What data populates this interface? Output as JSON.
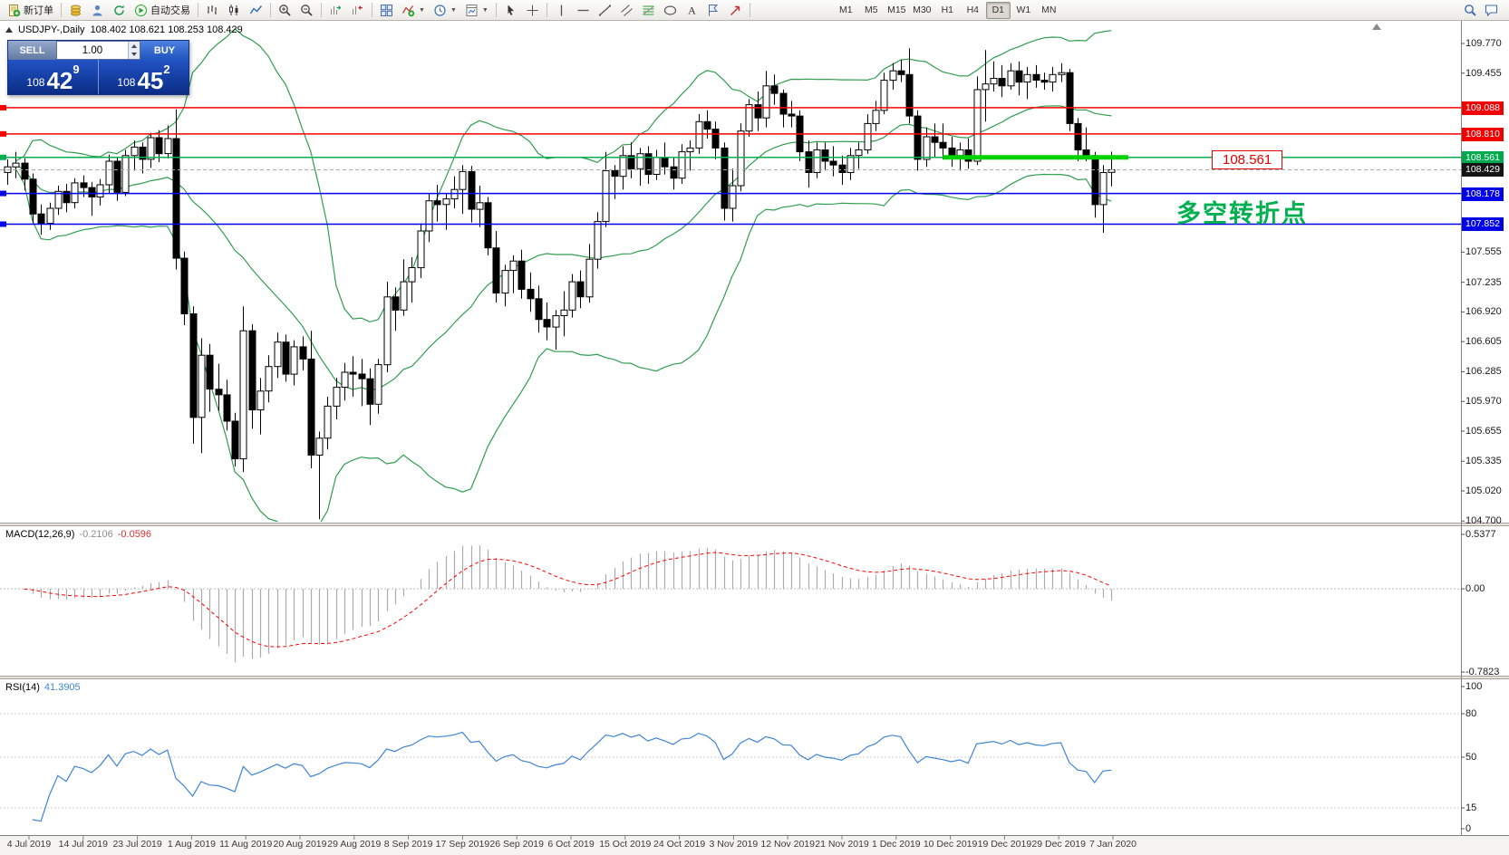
{
  "toolbar": {
    "buttons": [
      {
        "name": "new-order",
        "icon": "new-order",
        "label": "新订单"
      },
      {
        "sep": true
      },
      {
        "name": "market-watch",
        "icon": "coins"
      },
      {
        "name": "data-window",
        "icon": "person"
      },
      {
        "name": "navigator",
        "icon": "refresh"
      },
      {
        "name": "auto-trading",
        "icon": "play",
        "label": "自动交易"
      },
      {
        "sep": true
      },
      {
        "name": "chart-bars",
        "icon": "bars"
      },
      {
        "name": "chart-candles",
        "icon": "candles"
      },
      {
        "name": "chart-line",
        "icon": "linechart"
      },
      {
        "sep": true
      },
      {
        "name": "zoom-in",
        "icon": "zoomin"
      },
      {
        "name": "zoom-out",
        "icon": "zoomout"
      },
      {
        "sep": true
      },
      {
        "name": "auto-scroll",
        "icon": "autoscroll"
      },
      {
        "name": "chart-shift",
        "icon": "shift"
      },
      {
        "sep": true
      },
      {
        "name": "tile-windows",
        "icon": "tile"
      },
      {
        "name": "indicators",
        "icon": "indicator",
        "dropdown": true
      },
      {
        "name": "periods",
        "icon": "clock",
        "dropdown": true
      },
      {
        "name": "templates",
        "icon": "template",
        "dropdown": true
      },
      {
        "sep": true
      },
      {
        "name": "cursor",
        "icon": "cursor"
      },
      {
        "name": "crosshair",
        "icon": "cross"
      },
      {
        "sep": true
      },
      {
        "name": "vertical-line",
        "icon": "vline"
      },
      {
        "name": "horizontal-line",
        "icon": "hline"
      },
      {
        "name": "trendline",
        "icon": "tline"
      },
      {
        "name": "equidistant-channel",
        "icon": "channel"
      },
      {
        "name": "fibonacci",
        "icon": "fibo"
      },
      {
        "name": "shapes",
        "icon": "shapes"
      },
      {
        "name": "text",
        "icon": "textA"
      },
      {
        "name": "text-label",
        "icon": "label"
      },
      {
        "name": "arrows",
        "icon": "arrow"
      },
      {
        "sep": true
      }
    ],
    "timeframes": [
      "M1",
      "M5",
      "M15",
      "M30",
      "H1",
      "H4",
      "D1",
      "W1",
      "MN"
    ],
    "active_timeframe": "D1",
    "right_buttons": [
      {
        "name": "search",
        "icon": "search"
      },
      {
        "name": "chat",
        "icon": "chat"
      }
    ]
  },
  "chart": {
    "title": {
      "symbol": "USDJPY-,Daily",
      "ohlc": "108.402 108.621 108.253 108.429"
    },
    "trade_panel": {
      "sell_label": "SELL",
      "buy_label": "BUY",
      "volume": "1.00",
      "sell_price_big": "108",
      "sell_price_main": "42",
      "sell_price_sup": "9",
      "buy_price_big": "108",
      "buy_price_main": "45",
      "buy_price_sup": "2"
    },
    "annotations": {
      "price_label": "108.561",
      "note": "多空转折点"
    },
    "price_axis": {
      "ticks": [
        "109.770",
        "109.455",
        "107.555",
        "107.235",
        "106.920",
        "106.605",
        "106.285",
        "105.970",
        "105.655",
        "105.335",
        "105.020",
        "104.700"
      ],
      "tags": [
        {
          "text": "109.088",
          "bg": "#f00000"
        },
        {
          "text": "108.810",
          "bg": "#f00000"
        },
        {
          "text": "108.561",
          "bg": "#00a84e"
        },
        {
          "text": "108.429",
          "bg": "#151515"
        },
        {
          "text": "108.178",
          "bg": "#0000e8"
        },
        {
          "text": "107.852",
          "bg": "#0000e8"
        }
      ]
    },
    "time_axis": {
      "labels": [
        "4 Jul 2019",
        "14 Jul 2019",
        "23 Jul 2019",
        "1 Aug 2019",
        "11 Aug 2019",
        "20 Aug 2019",
        "29 Aug 2019",
        "8 Sep 2019",
        "17 Sep 2019",
        "26 Sep 2019",
        "6 Oct 2019",
        "15 Oct 2019",
        "24 Oct 2019",
        "3 Nov 2019",
        "12 Nov 2019",
        "21 Nov 2019",
        "1 Dec 2019",
        "10 Dec 2019",
        "19 Dec 2019",
        "29 Dec 2019",
        "7 Jan 2020"
      ]
    }
  },
  "panels": {
    "macd": {
      "label": "MACD(12,26,9)",
      "value_main": "-0.2106",
      "value_signal": "-0.0596",
      "axis": [
        "0.5377",
        "0.00",
        "-0.7823"
      ]
    },
    "rsi": {
      "label": "RSI(14)",
      "value": "41.3905",
      "axis": [
        "100",
        "80",
        "50",
        "15",
        "0"
      ],
      "levels": [
        80,
        50,
        15
      ]
    }
  },
  "chart_data": {
    "type": "candlestick",
    "symbol": "USDJPY",
    "timeframe": "Daily",
    "ylim": [
      104.7,
      109.77
    ],
    "ohlc": [
      [
        108.4,
        108.54,
        108.27,
        108.46
      ],
      [
        108.46,
        108.62,
        108.34,
        108.5
      ],
      [
        108.5,
        108.55,
        108.21,
        108.33
      ],
      [
        108.33,
        108.39,
        107.86,
        107.96
      ],
      [
        107.96,
        108.06,
        107.74,
        107.86
      ],
      [
        107.86,
        108.08,
        107.79,
        108.02
      ],
      [
        108.02,
        108.26,
        107.95,
        108.2
      ],
      [
        108.2,
        108.28,
        107.98,
        108.08
      ],
      [
        108.08,
        108.34,
        108.02,
        108.29
      ],
      [
        108.29,
        108.37,
        108.14,
        108.24
      ],
      [
        108.24,
        108.3,
        107.94,
        108.14
      ],
      [
        108.14,
        108.33,
        108.05,
        108.27
      ],
      [
        108.27,
        108.59,
        108.18,
        108.52
      ],
      [
        108.52,
        108.56,
        108.1,
        108.19
      ],
      [
        108.19,
        108.64,
        108.15,
        108.58
      ],
      [
        108.58,
        108.74,
        108.42,
        108.67
      ],
      [
        108.67,
        108.72,
        108.39,
        108.54
      ],
      [
        108.54,
        108.82,
        108.45,
        108.77
      ],
      [
        108.77,
        108.85,
        108.51,
        108.6
      ],
      [
        108.6,
        108.9,
        108.55,
        108.76
      ],
      [
        108.76,
        109.07,
        107.37,
        107.49
      ],
      [
        107.49,
        107.56,
        106.78,
        106.9
      ],
      [
        106.9,
        106.98,
        105.52,
        105.8
      ],
      [
        105.8,
        106.64,
        105.42,
        106.46
      ],
      [
        106.46,
        106.58,
        105.86,
        106.1
      ],
      [
        106.1,
        106.37,
        105.87,
        106.04
      ],
      [
        106.04,
        106.2,
        105.66,
        105.76
      ],
      [
        105.76,
        105.85,
        105.28,
        105.36
      ],
      [
        105.36,
        106.98,
        105.22,
        106.72
      ],
      [
        106.72,
        106.79,
        105.68,
        105.88
      ],
      [
        105.88,
        106.22,
        105.62,
        106.08
      ],
      [
        106.08,
        106.46,
        105.96,
        106.34
      ],
      [
        106.34,
        106.7,
        106.22,
        106.6
      ],
      [
        106.6,
        106.68,
        106.18,
        106.26
      ],
      [
        106.26,
        106.62,
        106.14,
        106.55
      ],
      [
        106.55,
        106.66,
        106.3,
        106.42
      ],
      [
        106.42,
        106.72,
        105.26,
        105.4
      ],
      [
        105.4,
        105.65,
        104.72,
        105.58
      ],
      [
        105.58,
        106.02,
        105.46,
        105.92
      ],
      [
        105.92,
        106.22,
        105.78,
        106.12
      ],
      [
        106.12,
        106.38,
        105.98,
        106.28
      ],
      [
        106.28,
        106.45,
        106.02,
        106.26
      ],
      [
        106.26,
        106.42,
        105.92,
        106.21
      ],
      [
        106.21,
        106.32,
        105.72,
        105.94
      ],
      [
        105.94,
        106.42,
        105.84,
        106.36
      ],
      [
        106.36,
        107.24,
        106.28,
        107.08
      ],
      [
        107.08,
        107.18,
        106.72,
        106.94
      ],
      [
        106.94,
        107.48,
        106.88,
        107.24
      ],
      [
        107.24,
        107.5,
        107.02,
        107.39
      ],
      [
        107.39,
        107.86,
        107.28,
        107.78
      ],
      [
        107.78,
        108.18,
        107.66,
        108.1
      ],
      [
        108.1,
        108.27,
        107.88,
        108.06
      ],
      [
        108.06,
        108.18,
        107.79,
        108.12
      ],
      [
        108.12,
        108.36,
        108.02,
        108.22
      ],
      [
        108.22,
        108.48,
        107.96,
        108.41
      ],
      [
        108.41,
        108.47,
        107.87,
        108.01
      ],
      [
        108.01,
        108.26,
        107.82,
        108.08
      ],
      [
        108.08,
        108.14,
        107.52,
        107.6
      ],
      [
        107.6,
        107.78,
        107.02,
        107.12
      ],
      [
        107.12,
        107.42,
        106.98,
        107.36
      ],
      [
        107.36,
        107.52,
        107.12,
        107.46
      ],
      [
        107.46,
        107.58,
        107.06,
        107.16
      ],
      [
        107.16,
        107.34,
        106.92,
        107.06
      ],
      [
        107.06,
        107.2,
        106.7,
        106.84
      ],
      [
        106.84,
        107.02,
        106.62,
        106.76
      ],
      [
        106.76,
        106.94,
        106.52,
        106.88
      ],
      [
        106.88,
        107.14,
        106.66,
        106.94
      ],
      [
        106.94,
        107.32,
        106.86,
        107.24
      ],
      [
        107.24,
        107.36,
        106.96,
        107.08
      ],
      [
        107.08,
        107.64,
        107.02,
        107.48
      ],
      [
        107.48,
        107.98,
        107.38,
        107.88
      ],
      [
        107.88,
        108.62,
        107.82,
        108.42
      ],
      [
        108.42,
        108.48,
        108.12,
        108.36
      ],
      [
        108.36,
        108.68,
        108.22,
        108.58
      ],
      [
        108.58,
        108.72,
        108.34,
        108.44
      ],
      [
        108.44,
        108.66,
        108.26,
        108.6
      ],
      [
        108.6,
        108.68,
        108.28,
        108.38
      ],
      [
        108.38,
        108.64,
        108.32,
        108.56
      ],
      [
        108.56,
        108.72,
        108.38,
        108.46
      ],
      [
        108.46,
        108.56,
        108.22,
        108.34
      ],
      [
        108.34,
        108.7,
        108.28,
        108.62
      ],
      [
        108.62,
        108.74,
        108.42,
        108.66
      ],
      [
        108.66,
        109.02,
        108.6,
        108.94
      ],
      [
        108.94,
        109.06,
        108.76,
        108.86
      ],
      [
        108.86,
        108.94,
        108.54,
        108.66
      ],
      [
        108.66,
        108.72,
        107.89,
        108.02
      ],
      [
        108.02,
        108.44,
        107.88,
        108.26
      ],
      [
        108.26,
        108.92,
        108.2,
        108.84
      ],
      [
        108.84,
        109.18,
        108.78,
        109.12
      ],
      [
        109.12,
        109.26,
        108.84,
        108.98
      ],
      [
        108.98,
        109.48,
        108.88,
        109.32
      ],
      [
        109.32,
        109.44,
        109.12,
        109.24
      ],
      [
        109.24,
        109.28,
        108.88,
        109.02
      ],
      [
        109.02,
        109.16,
        108.88,
        109.0
      ],
      [
        109.0,
        109.06,
        108.52,
        108.62
      ],
      [
        108.62,
        108.74,
        108.24,
        108.4
      ],
      [
        108.4,
        108.72,
        108.34,
        108.64
      ],
      [
        108.64,
        108.72,
        108.42,
        108.52
      ],
      [
        108.52,
        108.68,
        108.36,
        108.48
      ],
      [
        108.48,
        108.58,
        108.27,
        108.4
      ],
      [
        108.4,
        108.66,
        108.32,
        108.58
      ],
      [
        108.58,
        108.72,
        108.44,
        108.64
      ],
      [
        108.64,
        109.02,
        108.6,
        108.92
      ],
      [
        108.92,
        109.16,
        108.84,
        109.06
      ],
      [
        109.06,
        109.46,
        109.02,
        109.38
      ],
      [
        109.38,
        109.56,
        109.28,
        109.48
      ],
      [
        109.48,
        109.6,
        109.36,
        109.44
      ],
      [
        109.44,
        109.72,
        108.92,
        109.0
      ],
      [
        109.0,
        109.06,
        108.42,
        108.54
      ],
      [
        108.54,
        108.88,
        108.46,
        108.78
      ],
      [
        108.78,
        108.92,
        108.56,
        108.72
      ],
      [
        108.72,
        108.92,
        108.54,
        108.66
      ],
      [
        108.66,
        108.78,
        108.46,
        108.58
      ],
      [
        108.58,
        108.72,
        108.42,
        108.64
      ],
      [
        108.64,
        108.76,
        108.44,
        108.52
      ],
      [
        108.52,
        109.42,
        108.48,
        109.28
      ],
      [
        109.28,
        109.7,
        108.94,
        109.34
      ],
      [
        109.34,
        109.58,
        109.26,
        109.4
      ],
      [
        109.4,
        109.54,
        109.2,
        109.32
      ],
      [
        109.32,
        109.56,
        109.28,
        109.48
      ],
      [
        109.48,
        109.58,
        109.22,
        109.36
      ],
      [
        109.36,
        109.52,
        109.18,
        109.44
      ],
      [
        109.44,
        109.54,
        109.3,
        109.38
      ],
      [
        109.38,
        109.46,
        109.28,
        109.36
      ],
      [
        109.36,
        109.52,
        109.26,
        109.44
      ],
      [
        109.44,
        109.56,
        109.36,
        109.46
      ],
      [
        109.46,
        109.5,
        108.84,
        108.92
      ],
      [
        108.92,
        108.98,
        108.52,
        108.64
      ],
      [
        108.64,
        108.88,
        108.52,
        108.58
      ],
      [
        108.58,
        108.62,
        107.92,
        108.06
      ],
      [
        108.06,
        108.48,
        107.76,
        108.4
      ],
      [
        108.402,
        108.621,
        108.253,
        108.429
      ]
    ],
    "indicators": [
      {
        "type": "bollinger_bands",
        "period": 20,
        "deviation": 2,
        "color": "#2f9e4f"
      },
      {
        "type": "macd",
        "fast": 12,
        "slow": 26,
        "signal": 9,
        "current_main": -0.2106,
        "current_signal": -0.0596,
        "yrange": [
          -0.7823,
          0.5377
        ],
        "histogram_color": "#ababab",
        "signal_color": "#ff0000"
      },
      {
        "type": "rsi",
        "period": 14,
        "current": 41.3905,
        "yrange": [
          0,
          100
        ],
        "color": "#3f84d6"
      }
    ],
    "hlines": [
      {
        "price": 109.088,
        "color": "#ff0000"
      },
      {
        "price": 108.81,
        "color": "#ff0000"
      },
      {
        "price": 108.561,
        "color": "#00b050"
      },
      {
        "price": 108.178,
        "color": "#0000ee"
      },
      {
        "price": 107.852,
        "color": "#0000ee"
      }
    ],
    "current_price": 108.429,
    "highlight_segment": {
      "price": 108.561,
      "from_index": 111,
      "to_index": 133,
      "color": "#00d200"
    }
  }
}
